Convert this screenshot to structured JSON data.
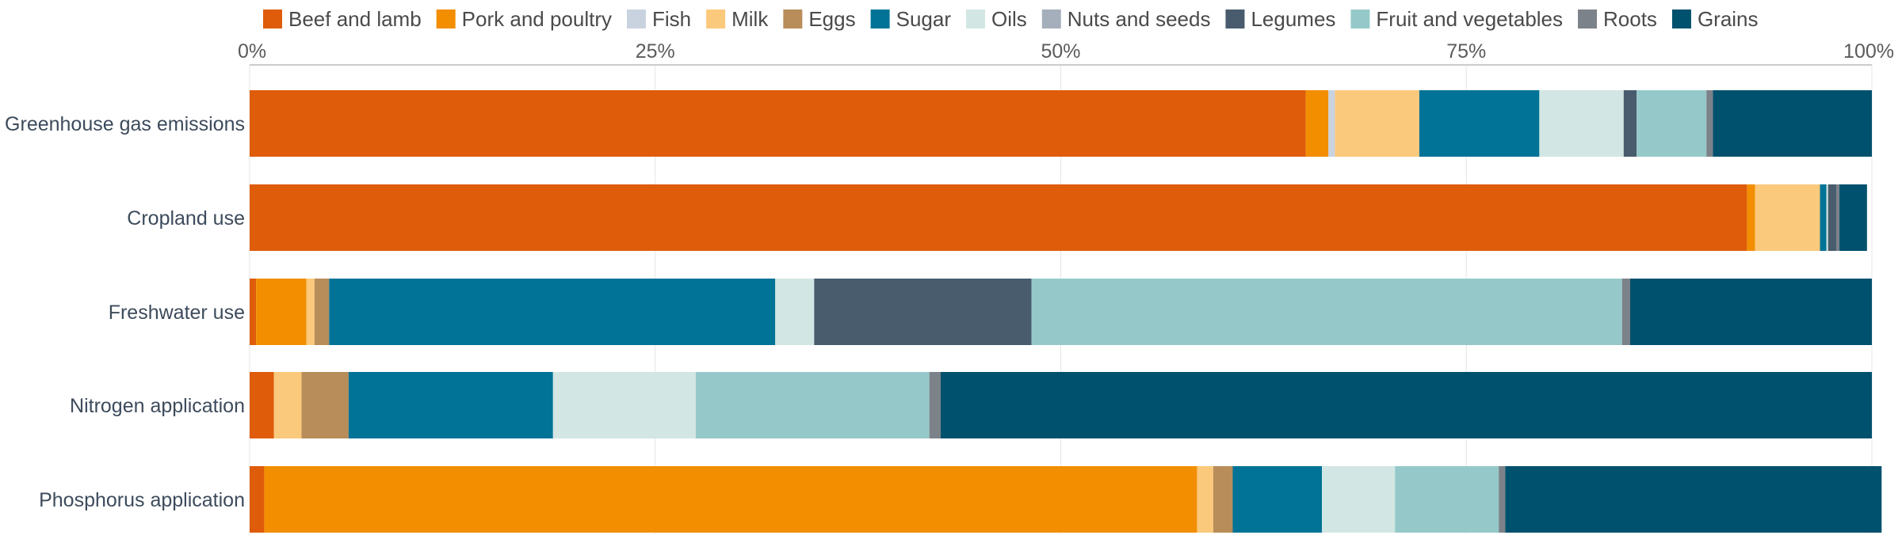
{
  "chart_data": {
    "type": "bar",
    "orientation": "horizontal",
    "stacked": true,
    "xlim": [
      0,
      100
    ],
    "x_ticks": [
      "0%",
      "25%",
      "50%",
      "75%",
      "100%"
    ],
    "categories": [
      "Greenhouse gas emissions",
      "Cropland use",
      "Freshwater use",
      "Nitrogen application",
      "Phosphorus application"
    ],
    "legend_position": "top",
    "grid": true,
    "series": [
      {
        "name": "Beef and lamb",
        "color": "#de5c0a",
        "values": [
          65.1,
          92.3,
          0.4,
          1.5,
          0.9
        ]
      },
      {
        "name": "Pork and poultry",
        "color": "#f28e00",
        "values": [
          1.4,
          0.5,
          3.1,
          0.0,
          57.5
        ]
      },
      {
        "name": "Fish",
        "color": "#c9d3e0",
        "values": [
          0.4,
          0.0,
          0.0,
          0.0,
          0.0
        ]
      },
      {
        "name": "Milk",
        "color": "#fbc97c",
        "values": [
          5.2,
          4.0,
          0.5,
          1.7,
          1.0
        ]
      },
      {
        "name": "Eggs",
        "color": "#b88d59",
        "values": [
          0.0,
          0.0,
          0.9,
          2.9,
          1.2
        ]
      },
      {
        "name": "Sugar",
        "color": "#007396",
        "values": [
          7.4,
          0.4,
          27.5,
          12.6,
          5.5
        ]
      },
      {
        "name": "Oils",
        "color": "#d2e6e3",
        "values": [
          5.2,
          0.1,
          2.4,
          8.8,
          4.5
        ]
      },
      {
        "name": "Nuts and seeds",
        "color": "#a5afbb",
        "values": [
          0.0,
          0.0,
          0.0,
          0.0,
          0.0
        ]
      },
      {
        "name": "Legumes",
        "color": "#485c6d",
        "values": [
          0.8,
          0.5,
          13.4,
          0.0,
          0.0
        ]
      },
      {
        "name": "Fruit and vegetables",
        "color": "#95c9c9",
        "values": [
          4.3,
          0.0,
          36.4,
          14.4,
          6.4
        ]
      },
      {
        "name": "Roots",
        "color": "#7c8289",
        "values": [
          0.4,
          0.2,
          0.5,
          0.7,
          0.4
        ]
      },
      {
        "name": "Grains",
        "color": "#00516d",
        "values": [
          9.8,
          1.7,
          14.9,
          57.4,
          23.2
        ]
      }
    ]
  }
}
